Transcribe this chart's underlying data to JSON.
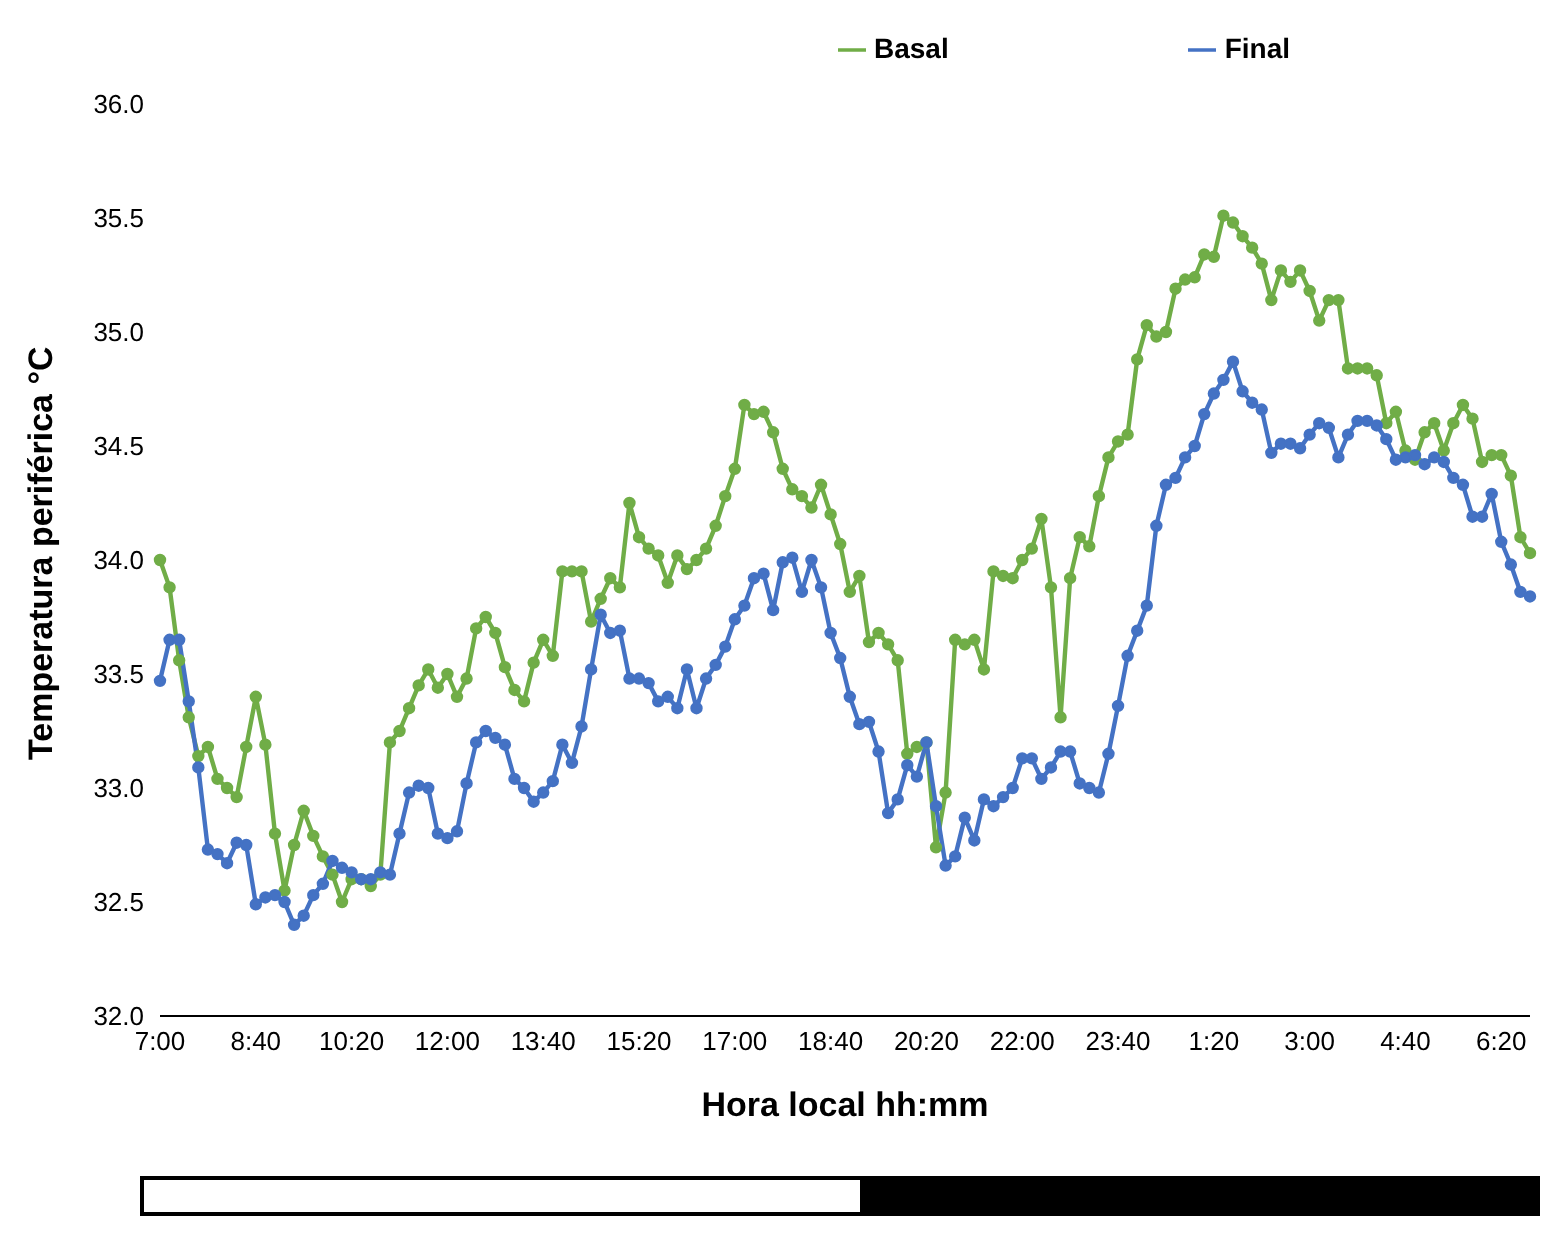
{
  "chart_data": {
    "type": "line",
    "xlabel": "Hora local hh:mm",
    "ylabel": "Temperatura periférica °C",
    "categories": [
      "7:00",
      null,
      null,
      null,
      null,
      null,
      null,
      null,
      null,
      null,
      "8:40",
      null,
      null,
      null,
      null,
      null,
      null,
      null,
      null,
      null,
      "10:20",
      null,
      null,
      null,
      null,
      null,
      null,
      null,
      null,
      null,
      "12:00",
      null,
      null,
      null,
      null,
      null,
      null,
      null,
      null,
      null,
      "13:40",
      null,
      null,
      null,
      null,
      null,
      null,
      null,
      null,
      null,
      "15:20",
      null,
      null,
      null,
      null,
      null,
      null,
      null,
      null,
      null,
      "17:00",
      null,
      null,
      null,
      null,
      null,
      null,
      null,
      null,
      null,
      "18:40",
      null,
      null,
      null,
      null,
      null,
      null,
      null,
      null,
      null,
      "20:20",
      null,
      null,
      null,
      null,
      null,
      null,
      null,
      null,
      null,
      "22:00",
      null,
      null,
      null,
      null,
      null,
      null,
      null,
      null,
      null,
      "23:40",
      null,
      null,
      null,
      null,
      null,
      null,
      null,
      null,
      null,
      "1:20",
      null,
      null,
      null,
      null,
      null,
      null,
      null,
      null,
      null,
      "3:00",
      null,
      null,
      null,
      null,
      null,
      null,
      null,
      null,
      null,
      "4:40",
      null,
      null,
      null,
      null,
      null,
      null,
      null,
      null,
      null,
      "6:20",
      null,
      null,
      null
    ],
    "series": [
      {
        "name": "Basal",
        "color": "#70ad47",
        "values": [
          34.0,
          33.88,
          33.56,
          33.31,
          33.14,
          33.18,
          33.04,
          33.0,
          32.96,
          33.18,
          33.4,
          33.19,
          32.8,
          32.55,
          32.75,
          32.9,
          32.79,
          32.7,
          32.62,
          32.5,
          32.6,
          32.6,
          32.57,
          32.62,
          33.2,
          33.25,
          33.35,
          33.45,
          33.52,
          33.44,
          33.5,
          33.4,
          33.48,
          33.7,
          33.75,
          33.68,
          33.53,
          33.43,
          33.38,
          33.55,
          33.65,
          33.58,
          33.95,
          33.95,
          33.95,
          33.73,
          33.83,
          33.92,
          33.88,
          34.25,
          34.1,
          34.05,
          34.02,
          33.9,
          34.02,
          33.96,
          34.0,
          34.05,
          34.15,
          34.28,
          34.4,
          34.68,
          34.64,
          34.65,
          34.56,
          34.4,
          34.31,
          34.28,
          34.23,
          34.33,
          34.2,
          34.07,
          33.86,
          33.93,
          33.64,
          33.68,
          33.63,
          33.56,
          33.15,
          33.18,
          33.2,
          32.74,
          32.98,
          33.65,
          33.63,
          33.65,
          33.52,
          33.95,
          33.93,
          33.92,
          34.0,
          34.05,
          34.18,
          33.88,
          33.31,
          33.92,
          34.1,
          34.06,
          34.28,
          34.45,
          34.52,
          34.55,
          34.88,
          35.03,
          34.98,
          35.0,
          35.19,
          35.23,
          35.24,
          35.34,
          35.33,
          35.51,
          35.48,
          35.42,
          35.37,
          35.3,
          35.14,
          35.27,
          35.22,
          35.27,
          35.18,
          35.05,
          35.14,
          35.14,
          34.84,
          34.84,
          34.84,
          34.81,
          34.6,
          34.65,
          34.48,
          34.44,
          34.56,
          34.6,
          34.48,
          34.6,
          34.68,
          34.62,
          34.43,
          34.46,
          34.46,
          34.37,
          34.1,
          34.03
        ]
      },
      {
        "name": "Final",
        "color": "#4472c4",
        "values": [
          33.47,
          33.65,
          33.65,
          33.38,
          33.09,
          32.73,
          32.71,
          32.67,
          32.76,
          32.75,
          32.49,
          32.52,
          32.53,
          32.5,
          32.4,
          32.44,
          32.53,
          32.58,
          32.68,
          32.65,
          32.63,
          32.6,
          32.6,
          32.63,
          32.62,
          32.8,
          32.98,
          33.01,
          33.0,
          32.8,
          32.78,
          32.81,
          33.02,
          33.2,
          33.25,
          33.22,
          33.19,
          33.04,
          33.0,
          32.94,
          32.98,
          33.03,
          33.19,
          33.11,
          33.27,
          33.52,
          33.76,
          33.68,
          33.69,
          33.48,
          33.48,
          33.46,
          33.38,
          33.4,
          33.35,
          33.52,
          33.35,
          33.48,
          33.54,
          33.62,
          33.74,
          33.8,
          33.92,
          33.94,
          33.78,
          33.99,
          34.01,
          33.86,
          34.0,
          33.88,
          33.68,
          33.57,
          33.4,
          33.28,
          33.29,
          33.16,
          32.89,
          32.95,
          33.1,
          33.05,
          33.2,
          32.92,
          32.66,
          32.7,
          32.87,
          32.77,
          32.95,
          32.92,
          32.96,
          33.0,
          33.13,
          33.13,
          33.04,
          33.09,
          33.16,
          33.16,
          33.02,
          33.0,
          32.98,
          33.15,
          33.36,
          33.58,
          33.69,
          33.8,
          34.15,
          34.33,
          34.36,
          34.45,
          34.5,
          34.64,
          34.73,
          34.79,
          34.87,
          34.74,
          34.69,
          34.66,
          34.47,
          34.51,
          34.51,
          34.49,
          34.55,
          34.6,
          34.58,
          34.45,
          34.55,
          34.61,
          34.61,
          34.59,
          34.53,
          34.44,
          34.45,
          34.46,
          34.42,
          34.45,
          34.43,
          34.36,
          34.33,
          34.19,
          34.19,
          34.29,
          34.08,
          33.98,
          33.86,
          33.84
        ]
      }
    ],
    "ylim": [
      32,
      36
    ],
    "yticks": [
      {
        "value": 32,
        "label": "32.0"
      },
      {
        "value": 32.5,
        "label": "32.5"
      },
      {
        "value": 33,
        "label": "33.0"
      },
      {
        "value": 33.5,
        "label": "33.5"
      },
      {
        "value": 34,
        "label": "34.0"
      },
      {
        "value": 34.5,
        "label": "34.5"
      },
      {
        "value": 35,
        "label": "35.0"
      },
      {
        "value": 35.5,
        "label": "35.5"
      },
      {
        "value": 36,
        "label": "36.0"
      }
    ],
    "grid": false,
    "legend": "top right",
    "marker": "circle",
    "line_style": "solid"
  }
}
